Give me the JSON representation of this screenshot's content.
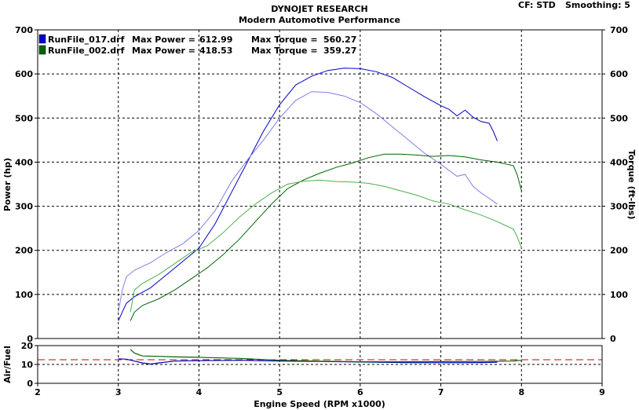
{
  "header": {
    "company": "DYNOJET RESEARCH",
    "subtitle": "Modern Automotive Performance",
    "cf_label": "CF: STD",
    "smoothing_label": "Smoothing: 5"
  },
  "colors": {
    "run017": "#0000c8",
    "run017_light": "#7f7fe6",
    "run002": "#006400",
    "run002_light": "#4fae4f",
    "ref_line": "#cc0000"
  },
  "chart_data": [
    {
      "type": "line",
      "title": "",
      "xlabel": "",
      "ylabel": "Power (hp)",
      "y2label": "Torque (ft-lbs)",
      "xlim": [
        2,
        9
      ],
      "ylim": [
        0,
        700
      ],
      "xticks": [
        "2",
        "3",
        "4",
        "5",
        "6",
        "7",
        "8",
        "9"
      ],
      "yticks": [
        "0",
        "100",
        "200",
        "300",
        "400",
        "500",
        "600",
        "700"
      ],
      "grid": true,
      "legend_position": "top-left",
      "legend": [
        {
          "file": "RunFile_017.drf",
          "max_power_label": "Max Power =",
          "max_power": "612.99",
          "max_torque_label": "Max Torque =",
          "max_torque": "560.27",
          "swatch_color": "#0000c8"
        },
        {
          "file": "RunFile_002.drf",
          "max_power_label": "Max Power =",
          "max_power": "418.53",
          "max_torque_label": "Max Torque =",
          "max_torque": "359.27",
          "swatch_color": "#006400"
        }
      ],
      "series": [
        {
          "run": "017",
          "measure": "power",
          "color": "#0000c8",
          "x": [
            3.0,
            3.05,
            3.1,
            3.2,
            3.4,
            3.6,
            3.8,
            4.0,
            4.2,
            4.4,
            4.6,
            4.8,
            5.0,
            5.2,
            5.4,
            5.6,
            5.8,
            6.0,
            6.2,
            6.4,
            6.6,
            6.8,
            7.0,
            7.1,
            7.2,
            7.3,
            7.4,
            7.5,
            7.6,
            7.65,
            7.7
          ],
          "y": [
            40,
            60,
            80,
            95,
            115,
            145,
            175,
            205,
            260,
            330,
            400,
            470,
            530,
            575,
            595,
            608,
            613,
            612,
            605,
            592,
            570,
            548,
            528,
            520,
            505,
            518,
            502,
            492,
            488,
            470,
            448
          ]
        },
        {
          "run": "017",
          "measure": "torque",
          "color": "#7f7fe6",
          "x": [
            3.0,
            3.05,
            3.1,
            3.2,
            3.4,
            3.6,
            3.8,
            4.0,
            4.2,
            4.4,
            4.6,
            4.8,
            5.0,
            5.2,
            5.4,
            5.6,
            5.8,
            6.0,
            6.2,
            6.4,
            6.6,
            6.8,
            7.0,
            7.2,
            7.3,
            7.4,
            7.5,
            7.6,
            7.7
          ],
          "y": [
            60,
            110,
            140,
            155,
            172,
            195,
            215,
            245,
            290,
            355,
            405,
            450,
            500,
            540,
            560,
            558,
            550,
            535,
            510,
            480,
            450,
            420,
            395,
            368,
            372,
            345,
            330,
            318,
            305
          ]
        },
        {
          "run": "002",
          "measure": "power",
          "color": "#006400",
          "x": [
            3.15,
            3.2,
            3.3,
            3.5,
            3.7,
            3.9,
            4.1,
            4.3,
            4.5,
            4.7,
            4.9,
            5.1,
            5.3,
            5.5,
            5.7,
            5.9,
            6.1,
            6.3,
            6.5,
            6.7,
            6.9,
            7.1,
            7.3,
            7.5,
            7.7,
            7.9,
            7.95,
            8.0
          ],
          "y": [
            40,
            60,
            75,
            90,
            110,
            135,
            160,
            190,
            225,
            265,
            305,
            340,
            360,
            375,
            388,
            398,
            410,
            418,
            418,
            416,
            413,
            415,
            412,
            405,
            400,
            392,
            370,
            335
          ]
        },
        {
          "run": "002",
          "measure": "torque",
          "color": "#4fae4f",
          "x": [
            3.15,
            3.2,
            3.3,
            3.5,
            3.7,
            3.9,
            4.1,
            4.3,
            4.5,
            4.7,
            4.9,
            5.1,
            5.3,
            5.5,
            5.7,
            5.9,
            6.1,
            6.3,
            6.5,
            6.7,
            6.9,
            7.1,
            7.3,
            7.5,
            7.7,
            7.9,
            7.95,
            8.0
          ],
          "y": [
            60,
            110,
            125,
            145,
            170,
            195,
            210,
            240,
            275,
            305,
            330,
            350,
            357,
            359,
            356,
            355,
            352,
            345,
            335,
            325,
            312,
            305,
            292,
            280,
            265,
            248,
            230,
            205
          ]
        }
      ]
    },
    {
      "type": "line",
      "title": "",
      "xlabel": "Engine Speed (RPM x1000)",
      "ylabel": "Air/Fuel",
      "xlim": [
        2,
        9
      ],
      "ylim": [
        0,
        20
      ],
      "xticks": [
        "2",
        "3",
        "4",
        "5",
        "6",
        "7",
        "8",
        "9"
      ],
      "yticks": [
        "0",
        "10",
        "20"
      ],
      "grid": true,
      "reference_line": {
        "y": 12.5,
        "color": "#cc0000",
        "style": "dashed"
      },
      "series": [
        {
          "run": "017",
          "color": "#0000c8",
          "x": [
            3.0,
            3.1,
            3.2,
            3.3,
            3.4,
            3.5,
            3.7,
            4.0,
            4.5,
            5.0,
            5.5,
            6.0,
            6.5,
            7.0,
            7.5,
            7.7
          ],
          "y": [
            13.0,
            12.8,
            11.8,
            10.8,
            10.2,
            10.8,
            11.8,
            12.0,
            12.2,
            11.8,
            11.6,
            11.3,
            11.0,
            10.9,
            11.0,
            11.2
          ]
        },
        {
          "run": "002",
          "color": "#006400",
          "x": [
            3.15,
            3.2,
            3.3,
            3.5,
            3.7,
            4.0,
            4.5,
            5.0,
            5.5,
            6.0,
            6.5,
            7.0,
            7.5,
            7.9,
            8.0
          ],
          "y": [
            18.0,
            16.0,
            14.5,
            14.3,
            14.0,
            13.8,
            13.2,
            12.2,
            11.7,
            11.4,
            11.4,
            11.5,
            11.6,
            11.8,
            12.2
          ]
        }
      ]
    }
  ]
}
